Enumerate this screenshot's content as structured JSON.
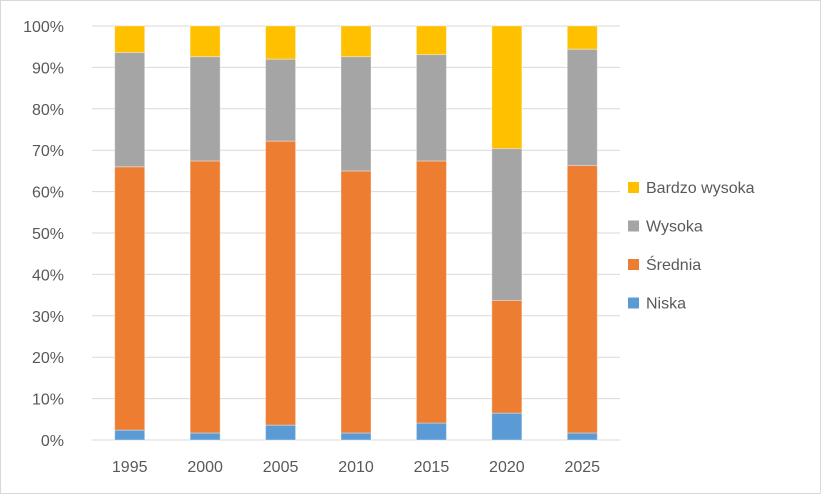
{
  "chart_data": {
    "type": "bar",
    "stacked": "percent",
    "title": "",
    "xlabel": "",
    "ylabel": "",
    "ylim": [
      0,
      100
    ],
    "yticks": [
      "0%",
      "10%",
      "20%",
      "30%",
      "40%",
      "50%",
      "60%",
      "70%",
      "80%",
      "90%",
      "100%"
    ],
    "categories": [
      "1995",
      "2000",
      "2005",
      "2010",
      "2015",
      "2020",
      "2025"
    ],
    "grid": true,
    "legend_position": "right",
    "series": [
      {
        "name": "Niska",
        "color": "#5B9BD5",
        "values": [
          2.4,
          1.7,
          3.6,
          1.7,
          4.1,
          6.5,
          1.7
        ]
      },
      {
        "name": "Średnia",
        "color": "#ED7D31",
        "values": [
          63.6,
          65.7,
          68.6,
          63.3,
          63.3,
          27.2,
          64.6
        ]
      },
      {
        "name": "Wysoka",
        "color": "#A5A5A5",
        "values": [
          27.6,
          25.2,
          19.8,
          27.6,
          25.7,
          36.7,
          28.1
        ]
      },
      {
        "name": "Bardzo wysoka",
        "color": "#FFC000",
        "values": [
          6.4,
          7.4,
          8.0,
          7.4,
          6.9,
          29.6,
          5.6
        ]
      }
    ]
  }
}
